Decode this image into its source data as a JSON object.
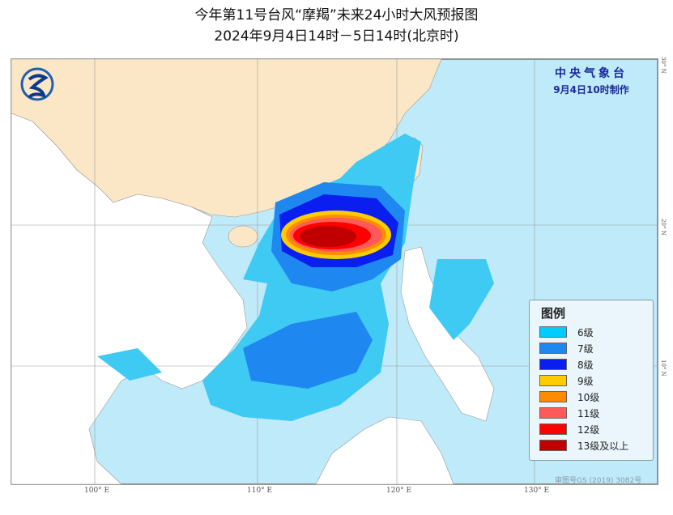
{
  "title": {
    "line1": "今年第11号台风“摩羯”未来24小时大风预报图",
    "line2": "2024年9月4日14时－5日14时(北京时)"
  },
  "agency": {
    "name": "中央气象台",
    "issued": "9月4日10时制作",
    "logo": "cma-logo"
  },
  "legend": {
    "title": "图例",
    "items": [
      {
        "label": "6级",
        "color": "#00ccff"
      },
      {
        "label": "7级",
        "color": "#1e88f0"
      },
      {
        "label": "8级",
        "color": "#0a1ef0"
      },
      {
        "label": "9级",
        "color": "#ffcc00"
      },
      {
        "label": "10级",
        "color": "#ff8c00"
      },
      {
        "label": "11级",
        "color": "#ff5a5a"
      },
      {
        "label": "12级",
        "color": "#ff0000"
      },
      {
        "label": "13级及以上",
        "color": "#c00000"
      }
    ]
  },
  "axes": {
    "longitudes": [
      "100° E",
      "110° E",
      "120° E",
      "130° E"
    ],
    "latitudes": [
      "30° N",
      "20° N",
      "10° N"
    ]
  },
  "review_number": "审图号GS (2019) 3082号",
  "colors": {
    "sea": "#bfeaf9",
    "china_land": "#fbe7c6",
    "other_land": "#ffffff"
  }
}
